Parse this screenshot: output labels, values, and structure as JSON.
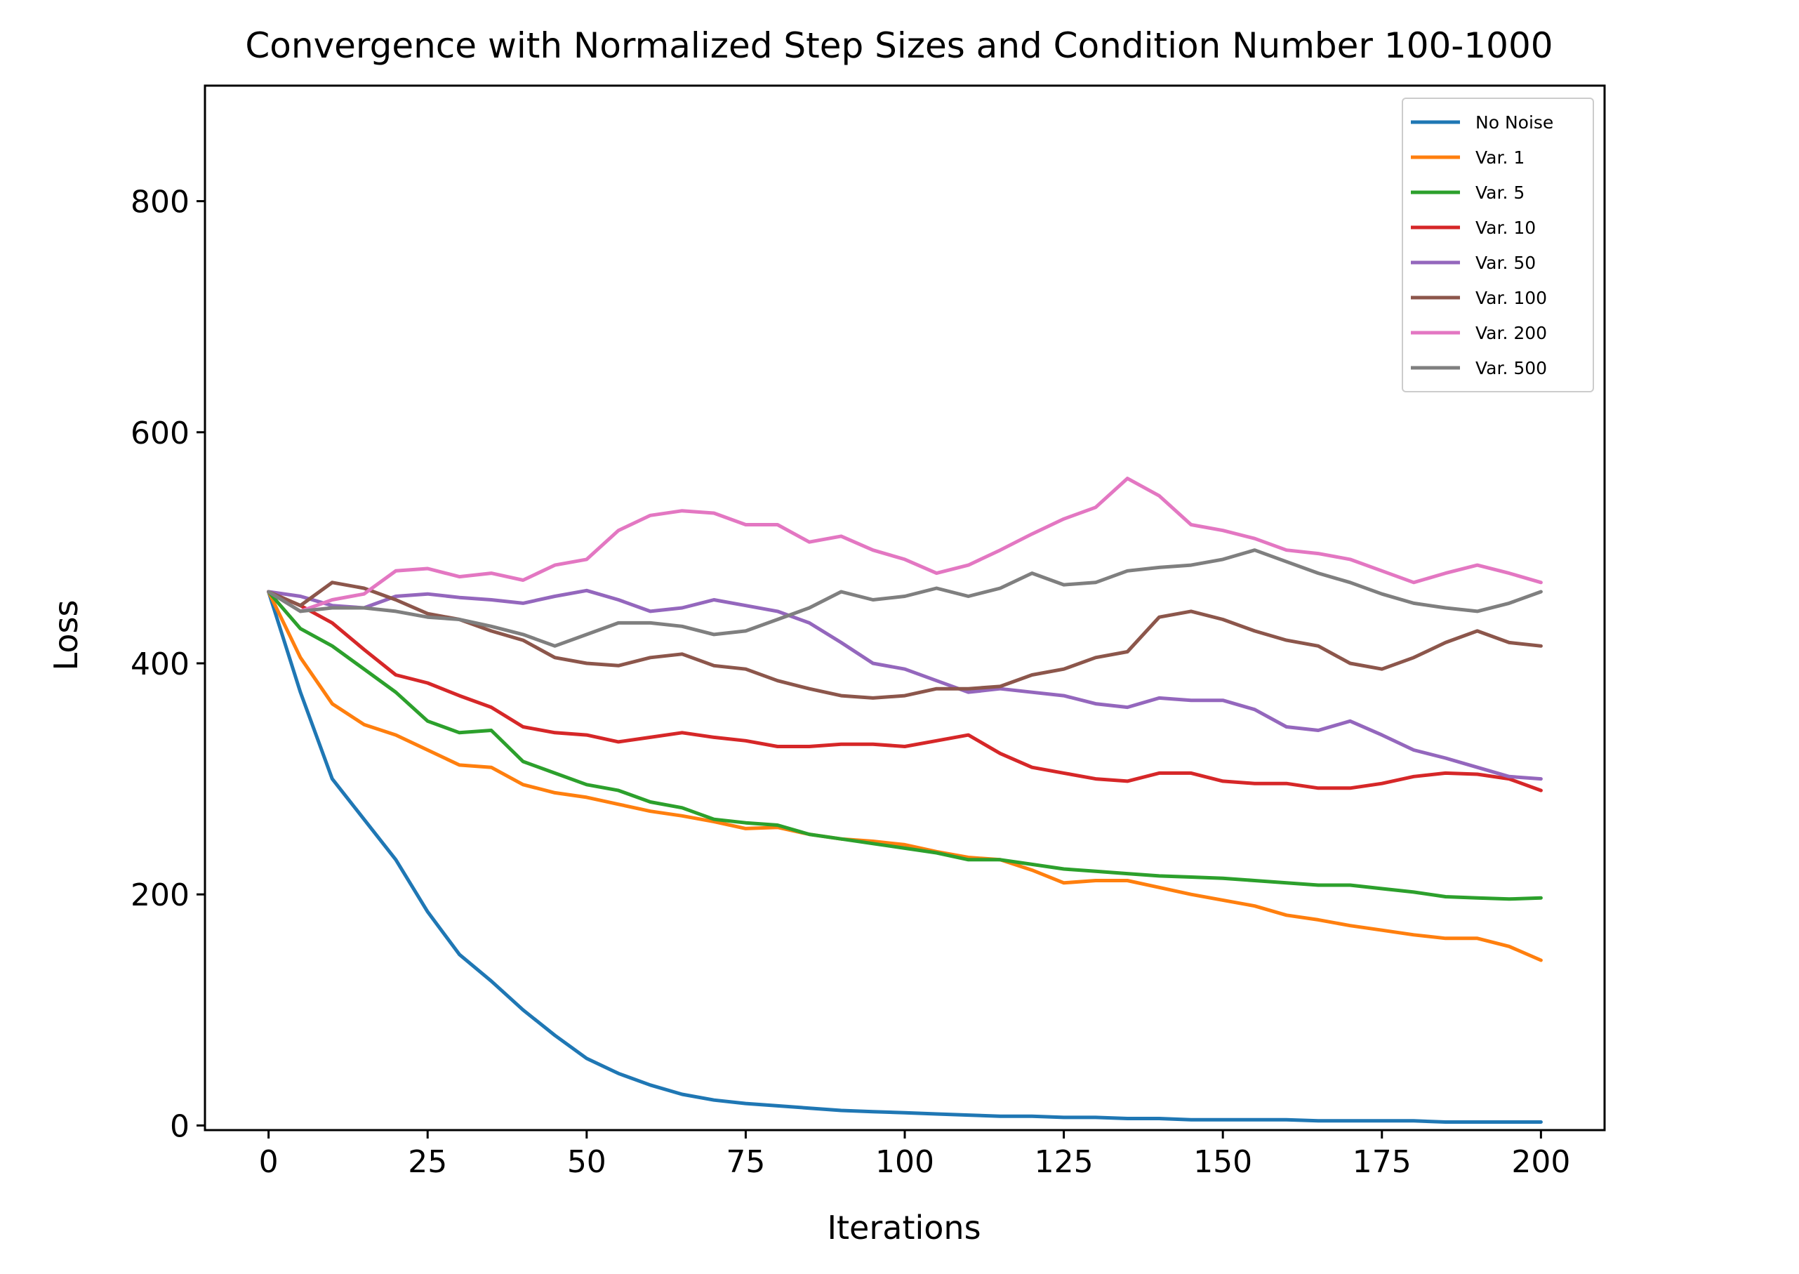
{
  "chart_data": {
    "type": "line",
    "title": "Convergence with Normalized Step Sizes and Condition Number 100-1000",
    "xlabel": "Iterations",
    "ylabel": "Loss",
    "xlim": [
      -10,
      210
    ],
    "ylim": [
      -4,
      900
    ],
    "xticks": [
      0,
      25,
      50,
      75,
      100,
      125,
      150,
      175,
      200
    ],
    "yticks": [
      0,
      200,
      400,
      600,
      800
    ],
    "grid": false,
    "legend_position": "top-right",
    "x": [
      0,
      5,
      10,
      15,
      20,
      25,
      30,
      35,
      40,
      45,
      50,
      55,
      60,
      65,
      70,
      75,
      80,
      85,
      90,
      95,
      100,
      105,
      110,
      115,
      120,
      125,
      130,
      135,
      140,
      145,
      150,
      155,
      160,
      165,
      170,
      175,
      180,
      185,
      190,
      195,
      200
    ],
    "series": [
      {
        "name": "No Noise",
        "color": "#1f77b4",
        "values": [
          462,
          375,
          300,
          265,
          230,
          185,
          148,
          125,
          100,
          78,
          58,
          45,
          35,
          27,
          22,
          19,
          17,
          15,
          13,
          12,
          11,
          10,
          9,
          8,
          8,
          7,
          7,
          6,
          6,
          5,
          5,
          5,
          5,
          4,
          4,
          4,
          4,
          3,
          3,
          3,
          3
        ]
      },
      {
        "name": "Var. 1",
        "color": "#ff7f0e",
        "values": [
          462,
          405,
          365,
          347,
          338,
          325,
          312,
          310,
          295,
          288,
          284,
          278,
          272,
          268,
          263,
          257,
          258,
          252,
          248,
          246,
          243,
          237,
          232,
          230,
          221,
          210,
          212,
          212,
          206,
          200,
          195,
          190,
          182,
          178,
          173,
          169,
          165,
          162,
          162,
          155,
          143
        ]
      },
      {
        "name": "Var. 5",
        "color": "#2ca02c",
        "values": [
          462,
          430,
          415,
          395,
          375,
          350,
          340,
          342,
          315,
          305,
          295,
          290,
          280,
          275,
          265,
          262,
          260,
          252,
          248,
          244,
          240,
          236,
          230,
          230,
          226,
          222,
          220,
          218,
          216,
          215,
          214,
          212,
          210,
          208,
          208,
          205,
          202,
          198,
          197,
          196,
          197
        ]
      },
      {
        "name": "Var. 10",
        "color": "#d62728",
        "values": [
          462,
          450,
          435,
          412,
          390,
          383,
          372,
          362,
          345,
          340,
          338,
          332,
          336,
          340,
          336,
          333,
          328,
          328,
          330,
          330,
          328,
          333,
          338,
          322,
          310,
          305,
          300,
          298,
          305,
          305,
          298,
          296,
          296,
          292,
          292,
          296,
          302,
          305,
          304,
          300,
          290
        ]
      },
      {
        "name": "Var. 50",
        "color": "#9467bd",
        "values": [
          462,
          458,
          450,
          448,
          458,
          460,
          457,
          455,
          452,
          458,
          463,
          455,
          445,
          448,
          455,
          450,
          445,
          435,
          418,
          400,
          395,
          385,
          375,
          378,
          375,
          372,
          365,
          362,
          370,
          368,
          368,
          360,
          345,
          342,
          350,
          338,
          325,
          318,
          310,
          302,
          300
        ]
      },
      {
        "name": "Var. 100",
        "color": "#8c564b",
        "values": [
          462,
          450,
          470,
          465,
          455,
          443,
          438,
          428,
          420,
          405,
          400,
          398,
          405,
          408,
          398,
          395,
          385,
          378,
          372,
          370,
          372,
          378,
          378,
          380,
          390,
          395,
          405,
          410,
          440,
          445,
          438,
          428,
          420,
          415,
          400,
          395,
          405,
          418,
          428,
          418,
          415
        ]
      },
      {
        "name": "Var. 200",
        "color": "#e377c2",
        "values": [
          462,
          445,
          455,
          460,
          480,
          482,
          475,
          478,
          472,
          485,
          490,
          515,
          528,
          532,
          530,
          520,
          520,
          505,
          510,
          498,
          490,
          478,
          485,
          498,
          512,
          525,
          535,
          560,
          545,
          520,
          515,
          508,
          498,
          495,
          490,
          480,
          470,
          478,
          485,
          478,
          470
        ]
      },
      {
        "name": "Var. 500",
        "color": "#7f7f7f",
        "values": [
          462,
          445,
          448,
          448,
          445,
          440,
          438,
          432,
          425,
          415,
          425,
          435,
          435,
          432,
          425,
          428,
          438,
          448,
          462,
          455,
          458,
          465,
          458,
          465,
          478,
          468,
          470,
          480,
          483,
          485,
          490,
          498,
          488,
          478,
          470,
          460,
          452,
          448,
          445,
          452,
          462
        ]
      }
    ]
  }
}
